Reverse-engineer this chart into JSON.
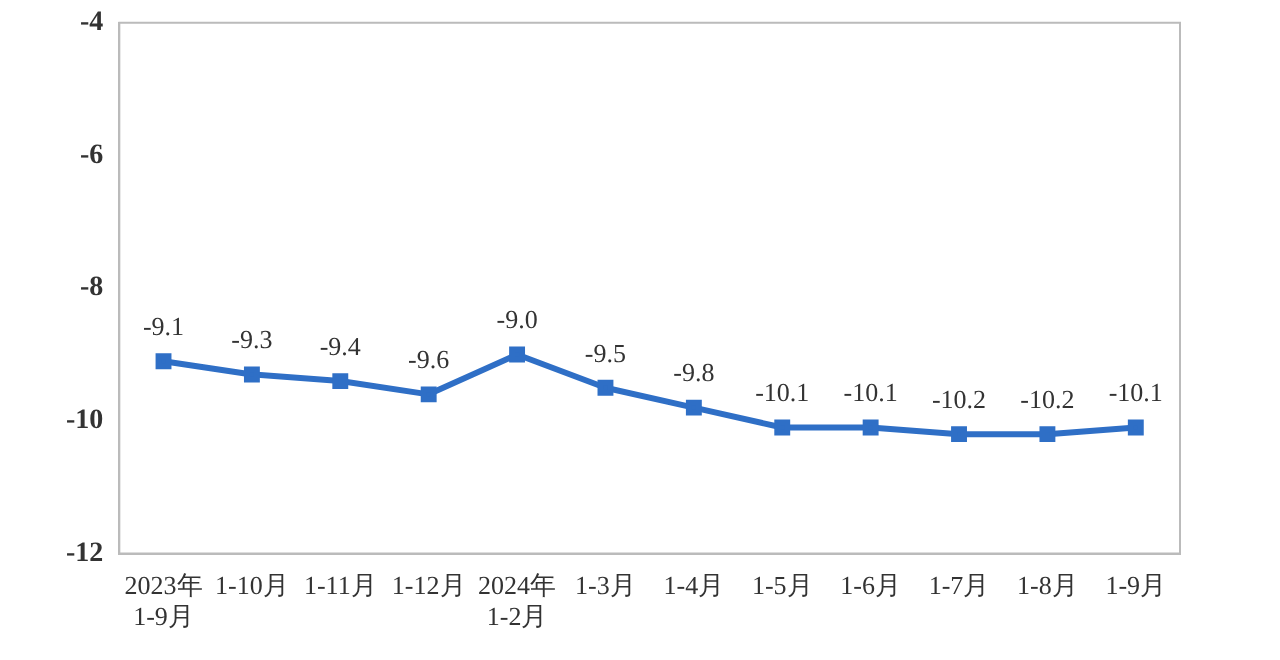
{
  "chart_data": {
    "type": "line",
    "categories": [
      "2023年\n1-9月",
      "1-10月",
      "1-11月",
      "1-12月",
      "2024年\n1-2月",
      "1-3月",
      "1-4月",
      "1-5月",
      "1-6月",
      "1-7月",
      "1-8月",
      "1-9月"
    ],
    "series": [
      {
        "color": "#2f6fc6",
        "values": [
          -9.1,
          -9.3,
          -9.4,
          -9.6,
          -9.0,
          -9.5,
          -9.8,
          -10.1,
          -10.1,
          -10.2,
          -10.2,
          -10.1
        ],
        "value_labels": [
          "-9.1",
          "-9.3",
          "-9.4",
          "-9.6",
          "-9.0",
          "-9.5",
          "-9.8",
          "-10.1",
          "-10.1",
          "-10.2",
          "-10.2",
          "-10.1"
        ]
      }
    ],
    "ylim": [
      -12,
      -4
    ],
    "yticks": [
      -12,
      -10,
      -8,
      -6,
      -4
    ],
    "grid": false,
    "legend": false,
    "marker": "square",
    "line_style": "solid"
  }
}
